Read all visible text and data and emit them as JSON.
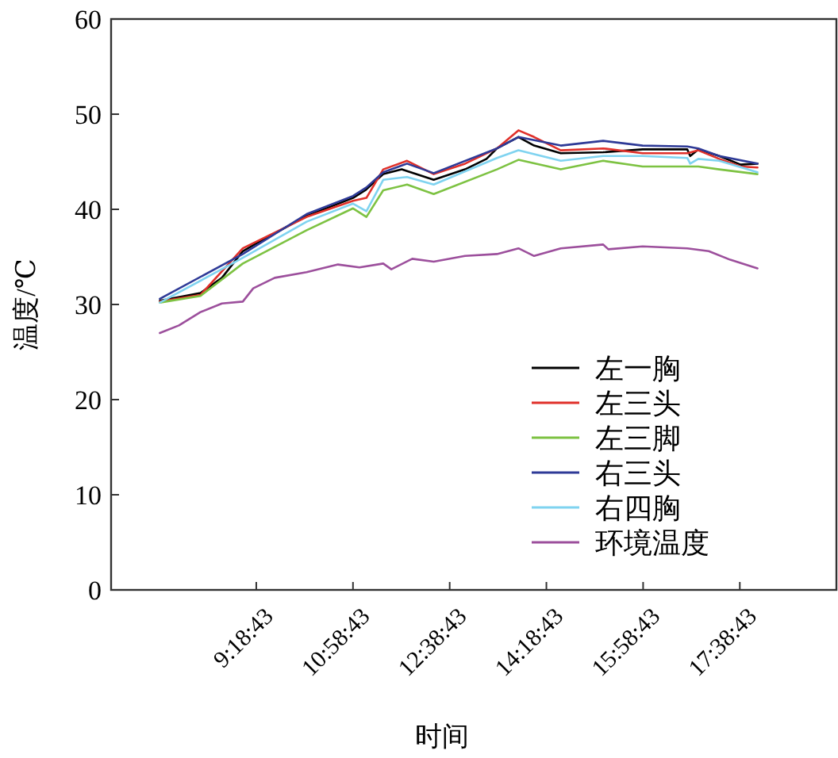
{
  "chart_data": {
    "type": "line",
    "xlabel": "时间",
    "ylabel": "温度/℃",
    "xlim": [
      6.81,
      19.31
    ],
    "xticks": [
      {
        "value": 9.3119,
        "label": "9:18:43"
      },
      {
        "value": 10.9786,
        "label": "10:58:43"
      },
      {
        "value": 12.6453,
        "label": "12:38:43"
      },
      {
        "value": 14.3119,
        "label": "14:18:43"
      },
      {
        "value": 15.9786,
        "label": "15:58:43"
      },
      {
        "value": 17.6453,
        "label": "17:38:43"
      }
    ],
    "ylim": [
      0,
      60
    ],
    "yticks": [
      0,
      10,
      20,
      30,
      40,
      50,
      60
    ],
    "grid": false,
    "legend": "bottom right",
    "marker": "none",
    "line_style": "solid",
    "series": [
      {
        "name": "左一胸",
        "color": "#000000",
        "x": [
          7.65,
          8.35,
          8.72,
          9.08,
          9.31,
          10.18,
          10.98,
          11.19,
          11.5,
          11.82,
          12.37,
          12.91,
          13.28,
          13.46,
          13.83,
          14.1,
          14.56,
          15.29,
          15.97,
          16.74,
          16.79,
          16.93,
          17.29,
          17.66,
          17.95
        ],
        "values": [
          30.4,
          31.2,
          32.8,
          35.6,
          36.4,
          39.3,
          41.2,
          42.0,
          43.7,
          44.2,
          43.1,
          44.2,
          45.3,
          46.4,
          47.6,
          46.7,
          45.9,
          46.0,
          46.3,
          46.3,
          45.6,
          46.3,
          45.6,
          44.7,
          44.8
        ]
      },
      {
        "name": "左三头",
        "color": "#e0302a",
        "x": [
          7.65,
          8.35,
          9.08,
          9.31,
          10.18,
          10.98,
          11.21,
          11.5,
          11.91,
          12.37,
          12.91,
          13.46,
          13.83,
          14.1,
          14.56,
          15.29,
          15.97,
          16.74,
          16.93,
          17.29,
          17.66,
          17.95
        ],
        "values": [
          30.3,
          31.0,
          35.9,
          36.6,
          39.2,
          40.9,
          41.2,
          44.2,
          45.1,
          43.7,
          44.8,
          46.4,
          48.3,
          47.6,
          46.2,
          46.4,
          45.9,
          45.9,
          46.2,
          45.3,
          44.5,
          44.4
        ]
      },
      {
        "name": "左三脚",
        "color": "#7dc242",
        "x": [
          7.65,
          8.35,
          9.08,
          10.18,
          10.98,
          11.21,
          11.5,
          11.91,
          12.37,
          13.46,
          13.83,
          14.56,
          15.29,
          15.97,
          16.74,
          16.93,
          17.29,
          17.95
        ],
        "values": [
          30.2,
          30.9,
          34.3,
          37.8,
          40.1,
          39.2,
          42.0,
          42.6,
          41.6,
          44.2,
          45.2,
          44.2,
          45.1,
          44.5,
          44.5,
          44.5,
          44.2,
          43.7
        ]
      },
      {
        "name": "右三头",
        "color": "#2e3a97",
        "x": [
          7.65,
          9.08,
          10.18,
          10.98,
          11.21,
          11.5,
          11.91,
          12.37,
          13.46,
          13.83,
          14.56,
          15.29,
          15.97,
          16.74,
          16.93,
          17.29,
          17.95
        ],
        "values": [
          30.6,
          35.3,
          39.5,
          41.4,
          42.3,
          43.9,
          44.8,
          43.8,
          46.4,
          47.6,
          46.7,
          47.2,
          46.7,
          46.6,
          46.4,
          45.6,
          44.8
        ]
      },
      {
        "name": "右四胸",
        "color": "#7fd3f0",
        "x": [
          7.65,
          9.08,
          10.18,
          10.98,
          11.21,
          11.5,
          11.91,
          12.37,
          13.46,
          13.83,
          14.56,
          15.29,
          15.97,
          16.74,
          16.79,
          16.93,
          17.29,
          17.95
        ],
        "values": [
          30.2,
          34.9,
          38.7,
          40.6,
          39.8,
          43.1,
          43.4,
          42.6,
          45.4,
          46.2,
          45.1,
          45.6,
          45.6,
          45.4,
          44.8,
          45.3,
          45.1,
          43.9
        ]
      },
      {
        "name": "环境温度",
        "color": "#9c4f9c",
        "x": [
          7.65,
          7.98,
          8.35,
          8.72,
          9.08,
          9.26,
          9.63,
          10.18,
          10.72,
          11.09,
          11.5,
          11.64,
          12.0,
          12.37,
          12.91,
          13.46,
          13.83,
          14.1,
          14.56,
          15.29,
          15.38,
          15.97,
          16.74,
          17.11,
          17.48,
          17.95
        ],
        "values": [
          27.0,
          27.8,
          29.2,
          30.1,
          30.3,
          31.7,
          32.8,
          33.4,
          34.2,
          33.9,
          34.3,
          33.7,
          34.8,
          34.5,
          35.1,
          35.3,
          35.9,
          35.1,
          35.9,
          36.3,
          35.8,
          36.1,
          35.9,
          35.6,
          34.7,
          33.8
        ]
      }
    ]
  }
}
